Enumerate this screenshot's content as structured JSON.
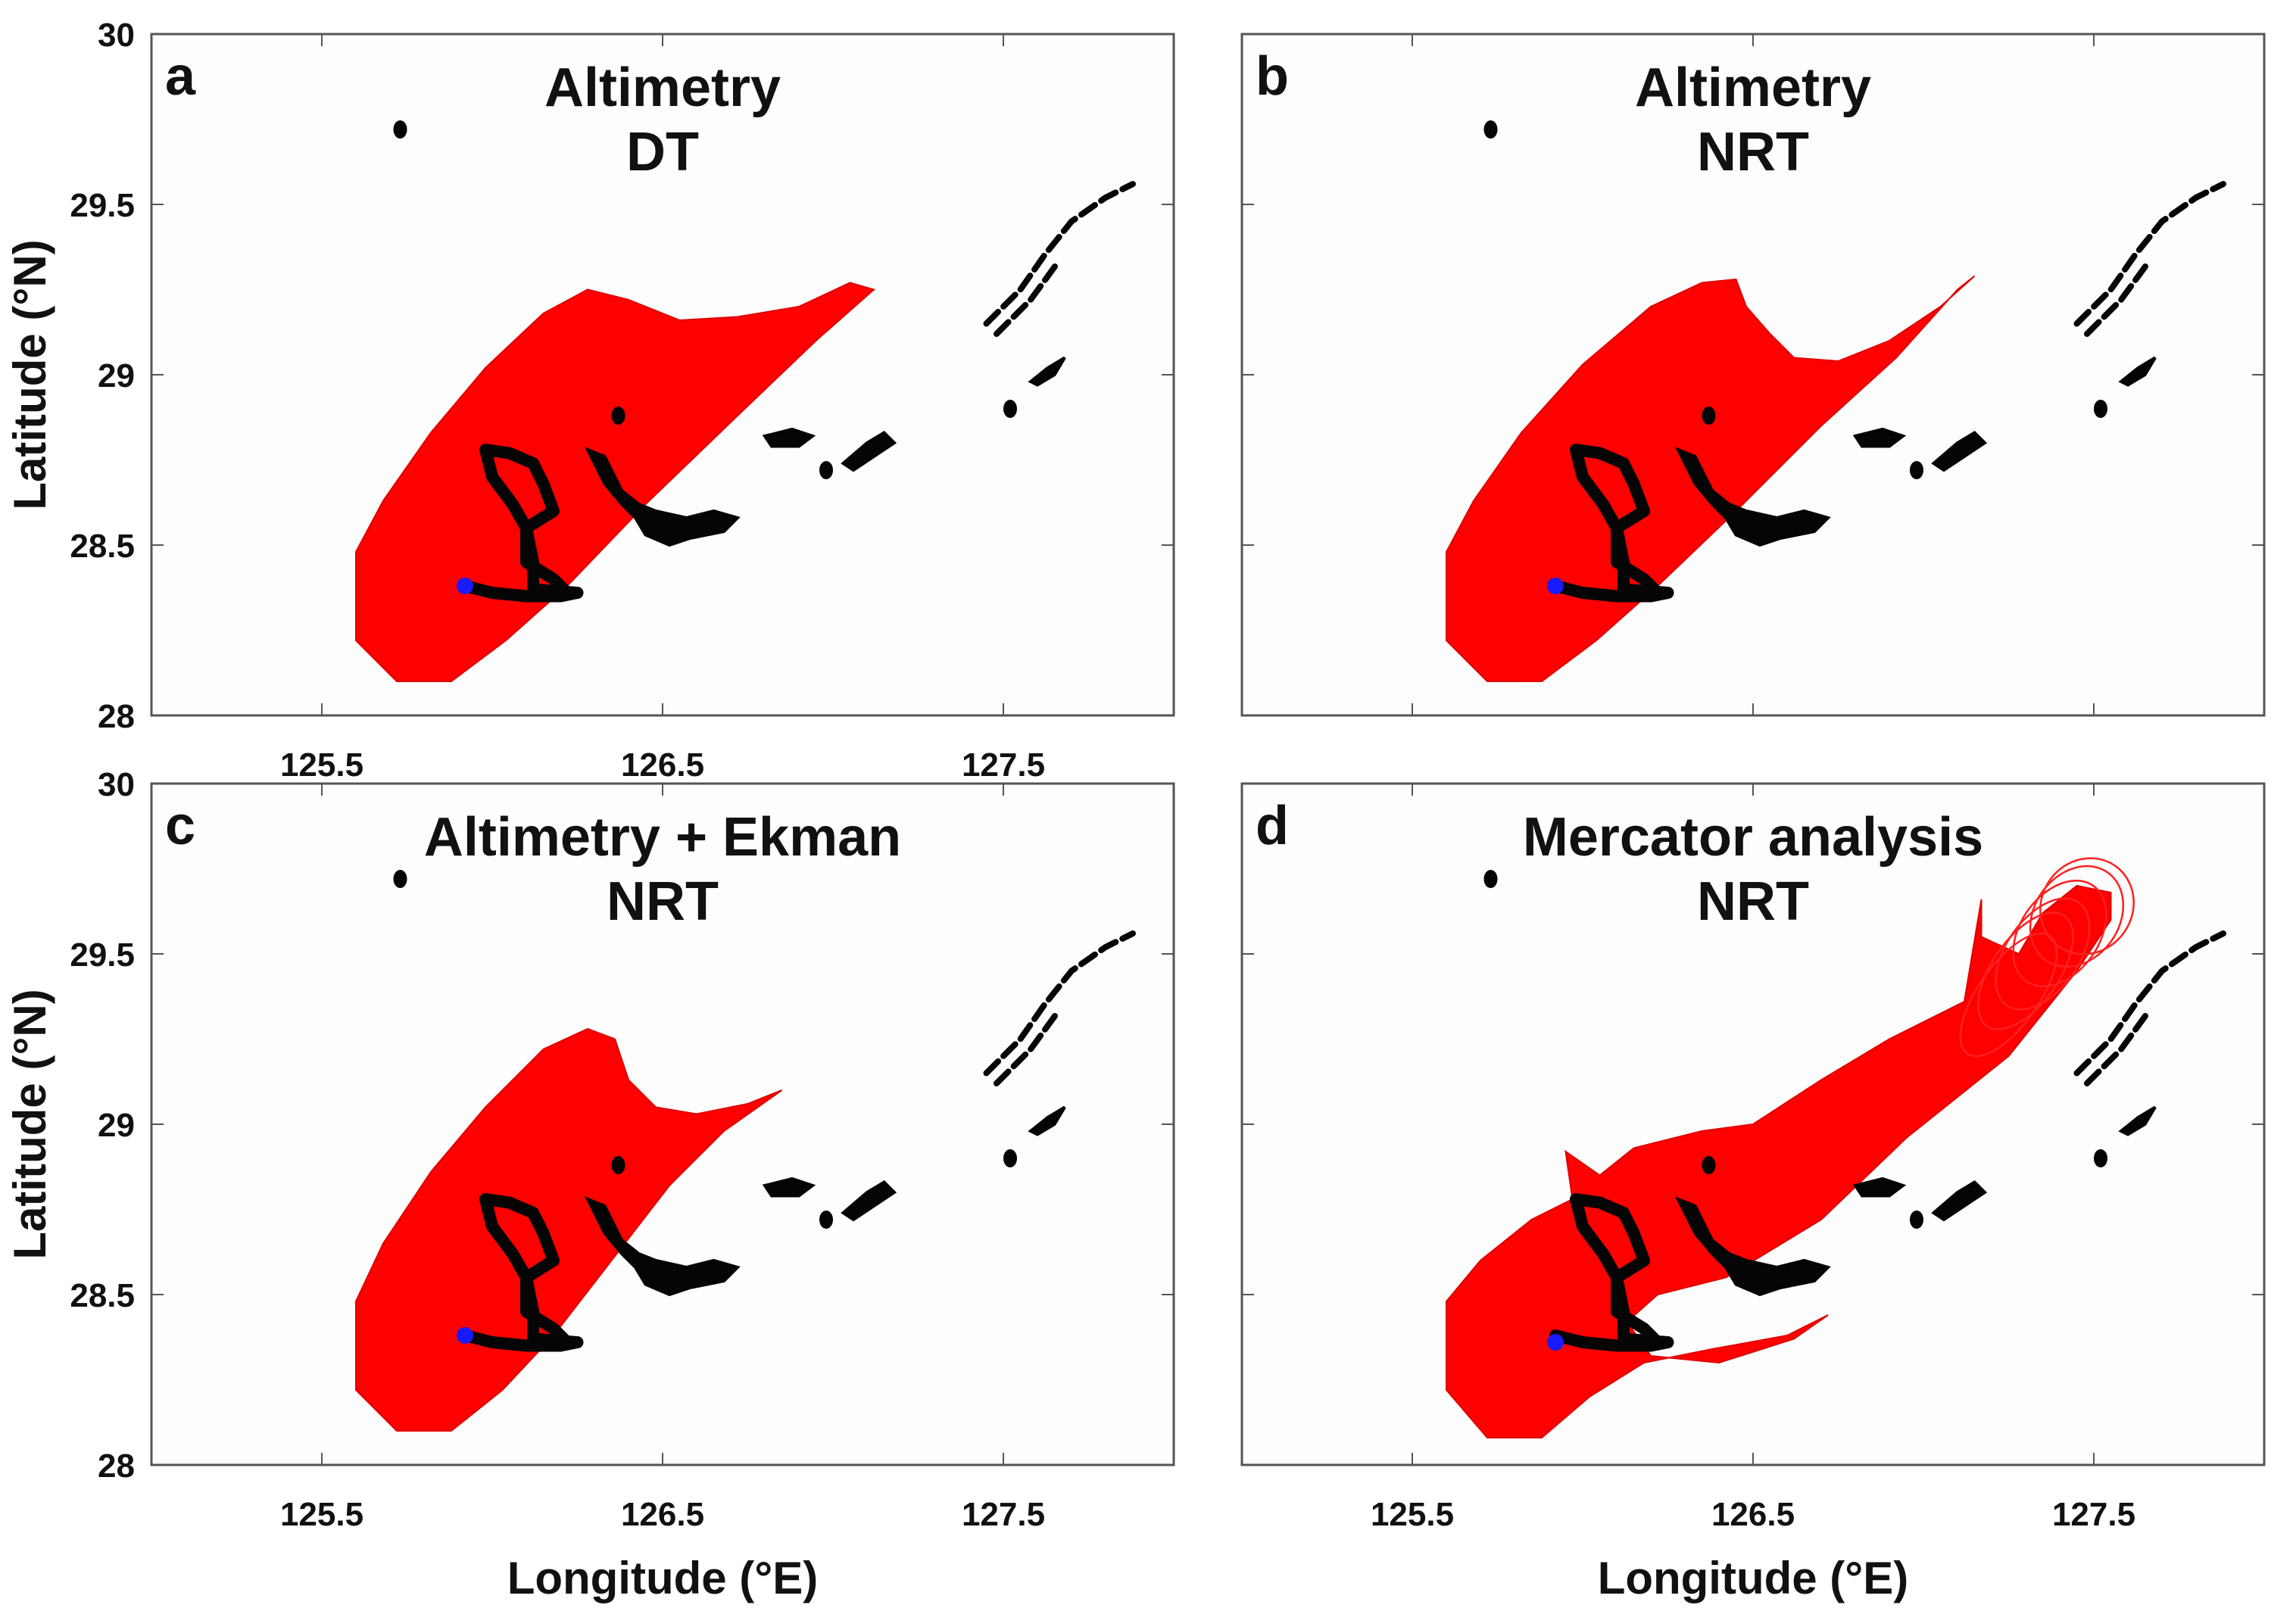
{
  "chart_data": [
    {
      "type": "map",
      "panel": "a",
      "title_lines": [
        "Altimetry",
        "DT"
      ],
      "xlim": [
        125.0,
        128.0
      ],
      "ylim": [
        28.0,
        30.0
      ],
      "xticks": [
        125.5,
        126.5,
        127.5
      ],
      "xtick_labels": [
        "125.5",
        "126.5",
        "127.5"
      ],
      "yticks": [
        28,
        28.5,
        29,
        29.5,
        30
      ],
      "ytick_labels": [
        "28",
        "28.5",
        "29",
        "29.5",
        "30"
      ],
      "xlabel": "",
      "ylabel": "Latitude (°N)",
      "plume": {
        "outline": [
          [
            125.6,
            28.38
          ],
          [
            125.6,
            28.22
          ],
          [
            125.72,
            28.1
          ],
          [
            125.88,
            28.1
          ],
          [
            126.04,
            28.22
          ],
          [
            126.22,
            28.38
          ],
          [
            126.45,
            28.62
          ],
          [
            126.72,
            28.88
          ],
          [
            126.95,
            29.1
          ],
          [
            127.12,
            29.25
          ],
          [
            127.05,
            29.27
          ],
          [
            126.9,
            29.2
          ],
          [
            126.72,
            29.17
          ],
          [
            126.55,
            29.16
          ],
          [
            126.4,
            29.22
          ],
          [
            126.28,
            29.25
          ],
          [
            126.15,
            29.18
          ],
          [
            125.98,
            29.02
          ],
          [
            125.82,
            28.83
          ],
          [
            125.68,
            28.63
          ],
          [
            125.6,
            28.48
          ]
        ],
        "color": "#ff0000"
      },
      "release_point": [
        125.92,
        28.38
      ]
    },
    {
      "type": "map",
      "panel": "b",
      "title_lines": [
        "Altimetry",
        "NRT"
      ],
      "xlim": [
        125.0,
        128.0
      ],
      "ylim": [
        28.0,
        30.0
      ],
      "xticks": [
        125.5,
        126.5,
        127.5
      ],
      "xtick_labels": [
        "",
        "",
        ""
      ],
      "yticks": [
        28,
        28.5,
        29,
        29.5,
        30
      ],
      "ytick_labels": [
        "",
        "",
        "",
        "",
        ""
      ],
      "xlabel": "",
      "ylabel": "",
      "plume": {
        "outline": [
          [
            125.6,
            28.38
          ],
          [
            125.6,
            28.22
          ],
          [
            125.72,
            28.1
          ],
          [
            125.88,
            28.1
          ],
          [
            126.04,
            28.22
          ],
          [
            126.22,
            28.38
          ],
          [
            126.45,
            28.6
          ],
          [
            126.7,
            28.85
          ],
          [
            126.92,
            29.05
          ],
          [
            127.1,
            29.25
          ],
          [
            127.15,
            29.29
          ],
          [
            127.05,
            29.2
          ],
          [
            126.9,
            29.1
          ],
          [
            126.75,
            29.04
          ],
          [
            126.62,
            29.05
          ],
          [
            126.55,
            29.12
          ],
          [
            126.48,
            29.2
          ],
          [
            126.45,
            29.28
          ],
          [
            126.35,
            29.27
          ],
          [
            126.2,
            29.2
          ],
          [
            126.0,
            29.03
          ],
          [
            125.82,
            28.83
          ],
          [
            125.68,
            28.63
          ],
          [
            125.6,
            28.48
          ]
        ],
        "color": "#ff0000"
      },
      "release_point": [
        125.92,
        28.38
      ]
    },
    {
      "type": "map",
      "panel": "c",
      "title_lines": [
        "Altimetry + Ekman",
        "NRT"
      ],
      "xlim": [
        125.0,
        128.0
      ],
      "ylim": [
        28.0,
        30.0
      ],
      "xticks": [
        125.5,
        126.5,
        127.5
      ],
      "xtick_labels": [
        "125.5",
        "126.5",
        "127.5"
      ],
      "yticks": [
        28,
        28.5,
        29,
        29.5,
        30
      ],
      "ytick_labels": [
        "28",
        "28.5",
        "29",
        "29.5",
        "30"
      ],
      "xlabel": "Longitude (°E)",
      "ylabel": "Latitude (°N)",
      "plume": {
        "outline": [
          [
            125.6,
            28.38
          ],
          [
            125.6,
            28.22
          ],
          [
            125.72,
            28.1
          ],
          [
            125.88,
            28.1
          ],
          [
            126.03,
            28.22
          ],
          [
            126.18,
            28.38
          ],
          [
            126.35,
            28.6
          ],
          [
            126.52,
            28.82
          ],
          [
            126.68,
            28.98
          ],
          [
            126.85,
            29.1
          ],
          [
            126.75,
            29.06
          ],
          [
            126.6,
            29.03
          ],
          [
            126.48,
            29.05
          ],
          [
            126.4,
            29.13
          ],
          [
            126.36,
            29.25
          ],
          [
            126.28,
            29.28
          ],
          [
            126.15,
            29.22
          ],
          [
            125.98,
            29.05
          ],
          [
            125.82,
            28.86
          ],
          [
            125.68,
            28.65
          ],
          [
            125.6,
            28.48
          ]
        ],
        "color": "#ff0000"
      },
      "release_point": [
        125.92,
        28.38
      ]
    },
    {
      "type": "map",
      "panel": "d",
      "title_lines": [
        "Mercator analysis",
        "NRT"
      ],
      "xlim": [
        125.0,
        128.0
      ],
      "ylim": [
        28.0,
        30.0
      ],
      "xticks": [
        125.5,
        126.5,
        127.5
      ],
      "xtick_labels": [
        "125.5",
        "126.5",
        "127.5"
      ],
      "yticks": [
        28,
        28.5,
        29,
        29.5,
        30
      ],
      "ytick_labels": [
        "",
        "",
        "",
        "",
        ""
      ],
      "xlabel": "Longitude (°E)",
      "ylabel": "",
      "plume": {
        "outline": [
          [
            125.6,
            28.38
          ],
          [
            125.6,
            28.22
          ],
          [
            125.72,
            28.08
          ],
          [
            125.88,
            28.08
          ],
          [
            126.02,
            28.2
          ],
          [
            126.18,
            28.3
          ],
          [
            126.38,
            28.34
          ],
          [
            126.6,
            28.38
          ],
          [
            126.72,
            28.44
          ],
          [
            126.62,
            28.37
          ],
          [
            126.4,
            28.3
          ],
          [
            126.2,
            28.32
          ],
          [
            126.13,
            28.42
          ],
          [
            126.22,
            28.5
          ],
          [
            126.42,
            28.55
          ],
          [
            126.7,
            28.72
          ],
          [
            126.95,
            28.96
          ],
          [
            127.25,
            29.2
          ],
          [
            127.45,
            29.45
          ],
          [
            127.55,
            29.6
          ],
          [
            127.55,
            29.68
          ],
          [
            127.45,
            29.7
          ],
          [
            127.35,
            29.62
          ],
          [
            127.28,
            29.5
          ],
          [
            127.17,
            29.55
          ],
          [
            127.17,
            29.66
          ],
          [
            127.12,
            29.36
          ],
          [
            126.9,
            29.25
          ],
          [
            126.7,
            29.13
          ],
          [
            126.5,
            29.0
          ],
          [
            126.35,
            28.98
          ],
          [
            126.15,
            28.93
          ],
          [
            126.05,
            28.85
          ],
          [
            125.95,
            28.92
          ],
          [
            125.97,
            28.78
          ],
          [
            125.85,
            28.72
          ],
          [
            125.7,
            28.6
          ],
          [
            125.6,
            28.48
          ]
        ],
        "color": "#ff0000",
        "rings": [
          [
            127.25,
            29.38
          ],
          [
            127.3,
            29.45
          ],
          [
            127.35,
            29.5
          ],
          [
            127.4,
            29.56
          ],
          [
            127.45,
            29.61
          ],
          [
            127.48,
            29.64
          ]
        ]
      },
      "release_point": [
        125.92,
        28.36
      ]
    }
  ],
  "islands": {
    "coast_arcs": [
      [
        [
          127.45,
          29.15
        ],
        [
          127.55,
          29.25
        ],
        [
          127.62,
          29.35
        ],
        [
          127.7,
          29.45
        ],
        [
          127.8,
          29.52
        ],
        [
          127.88,
          29.56
        ]
      ],
      [
        [
          127.48,
          29.12
        ],
        [
          127.58,
          29.22
        ],
        [
          127.66,
          29.33
        ]
      ]
    ],
    "blobs": [
      [
        [
          126.28,
          28.78
        ],
        [
          126.33,
          28.76
        ],
        [
          126.35,
          28.72
        ],
        [
          126.38,
          28.66
        ],
        [
          126.43,
          28.62
        ],
        [
          126.48,
          28.6
        ],
        [
          126.57,
          28.58
        ],
        [
          126.65,
          28.6
        ],
        [
          126.72,
          28.58
        ],
        [
          126.68,
          28.54
        ],
        [
          126.58,
          28.52
        ],
        [
          126.52,
          28.5
        ],
        [
          126.45,
          28.53
        ],
        [
          126.42,
          28.58
        ],
        [
          126.38,
          28.62
        ],
        [
          126.33,
          28.68
        ],
        [
          126.3,
          28.74
        ]
      ],
      [
        [
          126.8,
          28.82
        ],
        [
          126.88,
          28.84
        ],
        [
          126.94,
          28.82
        ],
        [
          126.9,
          28.79
        ],
        [
          126.82,
          28.79
        ]
      ],
      [
        [
          127.03,
          28.74
        ],
        [
          127.1,
          28.8
        ],
        [
          127.15,
          28.83
        ],
        [
          127.18,
          28.8
        ],
        [
          127.12,
          28.76
        ],
        [
          127.06,
          28.72
        ]
      ],
      [
        [
          127.58,
          28.98
        ],
        [
          127.63,
          29.02
        ],
        [
          127.68,
          29.05
        ],
        [
          127.65,
          29.0
        ],
        [
          127.6,
          28.97
        ]
      ]
    ],
    "dots": [
      [
        125.73,
        29.72
      ],
      [
        126.37,
        28.88
      ],
      [
        127.52,
        28.9
      ],
      [
        126.98,
        28.72
      ]
    ]
  },
  "ship_track": [
    [
      125.92,
      28.38
    ],
    [
      126.0,
      28.36
    ],
    [
      126.1,
      28.35
    ],
    [
      126.2,
      28.35
    ],
    [
      126.25,
      28.36
    ],
    [
      126.12,
      28.37
    ],
    [
      126.12,
      28.45
    ],
    [
      126.1,
      28.55
    ],
    [
      126.06,
      28.62
    ],
    [
      126.0,
      28.7
    ],
    [
      125.98,
      28.78
    ],
    [
      126.05,
      28.77
    ],
    [
      126.12,
      28.74
    ],
    [
      126.15,
      28.68
    ],
    [
      126.18,
      28.6
    ],
    [
      126.1,
      28.55
    ],
    [
      126.1,
      28.45
    ],
    [
      126.18,
      28.4
    ],
    [
      126.22,
      28.36
    ]
  ]
}
